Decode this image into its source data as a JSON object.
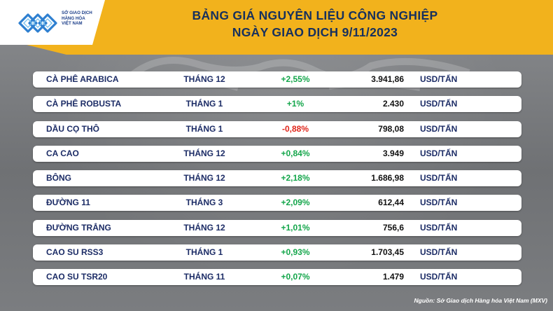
{
  "header": {
    "logo_lines": [
      "SỞ GIAO DỊCH",
      "HÀNG HÓA",
      "VIỆT NAM"
    ],
    "title_line1": "BẢNG GIÁ NGUYÊN LIỆU CÔNG NGHIỆP",
    "title_line2": "NGÀY GIAO DỊCH 9/11/2023"
  },
  "rows": [
    {
      "name": "CÀ PHÊ ARABICA",
      "month": "THÁNG 12",
      "change": "+2,55%",
      "price": "3.941,86",
      "unit": "USD/TẤN",
      "direction": "up"
    },
    {
      "name": "CÀ PHÊ ROBUSTA",
      "month": "THÁNG 1",
      "change": "+1%",
      "price": "2.430",
      "unit": "USD/TẤN",
      "direction": "up"
    },
    {
      "name": "DẦU CỌ THÔ",
      "month": "THÁNG 1",
      "change": "-0,88%",
      "price": "798,08",
      "unit": "USD/TẤN",
      "direction": "down"
    },
    {
      "name": "CA CAO",
      "month": "THÁNG 12",
      "change": "+0,84%",
      "price": "3.949",
      "unit": "USD/TẤN",
      "direction": "up"
    },
    {
      "name": "BÔNG",
      "month": "THÁNG 12",
      "change": "+2,18%",
      "price": "1.686,98",
      "unit": "USD/TẤN",
      "direction": "up"
    },
    {
      "name": "ĐƯỜNG 11",
      "month": "THÁNG 3",
      "change": "+2,09%",
      "price": "612,44",
      "unit": "USD/TẤN",
      "direction": "up"
    },
    {
      "name": "ĐƯỜNG TRẮNG",
      "month": "THÁNG 12",
      "change": "+1,01%",
      "price": "756,6",
      "unit": "USD/TẤN",
      "direction": "up"
    },
    {
      "name": "CAO SU RSS3",
      "month": "THÁNG 1",
      "change": "+0,93%",
      "price": "1.703,45",
      "unit": "USD/TẤN",
      "direction": "up"
    },
    {
      "name": "CAO SU TSR20",
      "month": "THÁNG 11",
      "change": "+0,07%",
      "price": "1.479",
      "unit": "USD/TẤN",
      "direction": "up"
    }
  ],
  "source": "Nguồn: Sở Giao dịch Hàng hóa Việt Nam (MXV)",
  "colors": {
    "header": "#f2b21c",
    "title": "#16305e",
    "positive": "#14a64b",
    "negative": "#e0261b"
  }
}
